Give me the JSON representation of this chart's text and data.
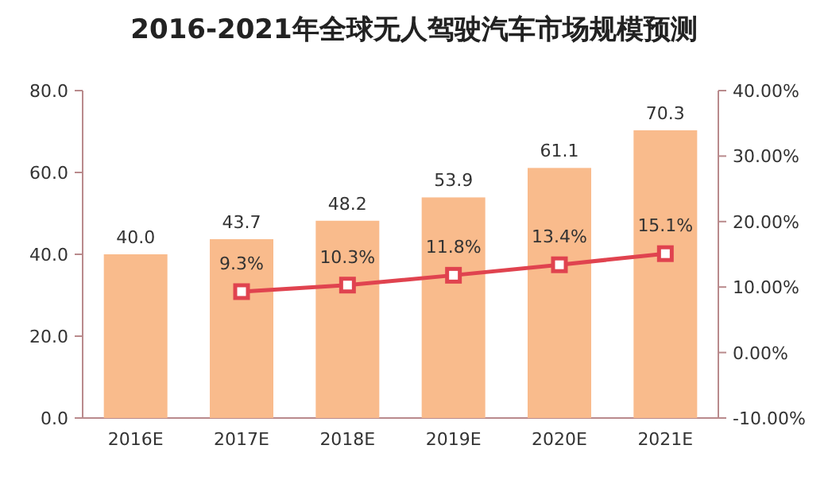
{
  "chart_data": {
    "type": "bar",
    "title": "2016-2021年全球无人驾驶汽车市场规模预测",
    "categories": [
      "2016E",
      "2017E",
      "2018E",
      "2019E",
      "2020E",
      "2021E"
    ],
    "series": [
      {
        "color": "#f9bb8c",
        "values": [
          40.0,
          43.7,
          48.2,
          53.9,
          61.1,
          70.3
        ],
        "value_labels": [
          "40.0",
          "43.7",
          "48.2",
          "53.9",
          "61.1",
          "70.3"
        ]
      },
      {
        "type": "line",
        "axis": "y2",
        "color": "#e0434f",
        "marker": "square",
        "values": [
          null,
          9.3,
          10.3,
          11.8,
          13.4,
          15.1
        ],
        "value_labels": [
          null,
          "9.3%",
          "10.3%",
          "11.8%",
          "13.4%",
          "15.1%"
        ]
      }
    ],
    "ylim": [
      0,
      80
    ],
    "yticks": [
      {
        "value": 0,
        "label": "0.0"
      },
      {
        "value": 20,
        "label": "20.0"
      },
      {
        "value": 40,
        "label": "40.0"
      },
      {
        "value": 60,
        "label": "60.0"
      },
      {
        "value": 80,
        "label": "80.0"
      }
    ],
    "y2lim": [
      -10,
      40
    ],
    "y2ticks": [
      {
        "value": -10,
        "label": "-10.00%"
      },
      {
        "value": 0,
        "label": "0.00%"
      },
      {
        "value": 10,
        "label": "10.00%"
      },
      {
        "value": 20,
        "label": "20.00%"
      },
      {
        "value": 30,
        "label": "30.00%"
      },
      {
        "value": 40,
        "label": "40.00%"
      }
    ],
    "grid": false
  }
}
